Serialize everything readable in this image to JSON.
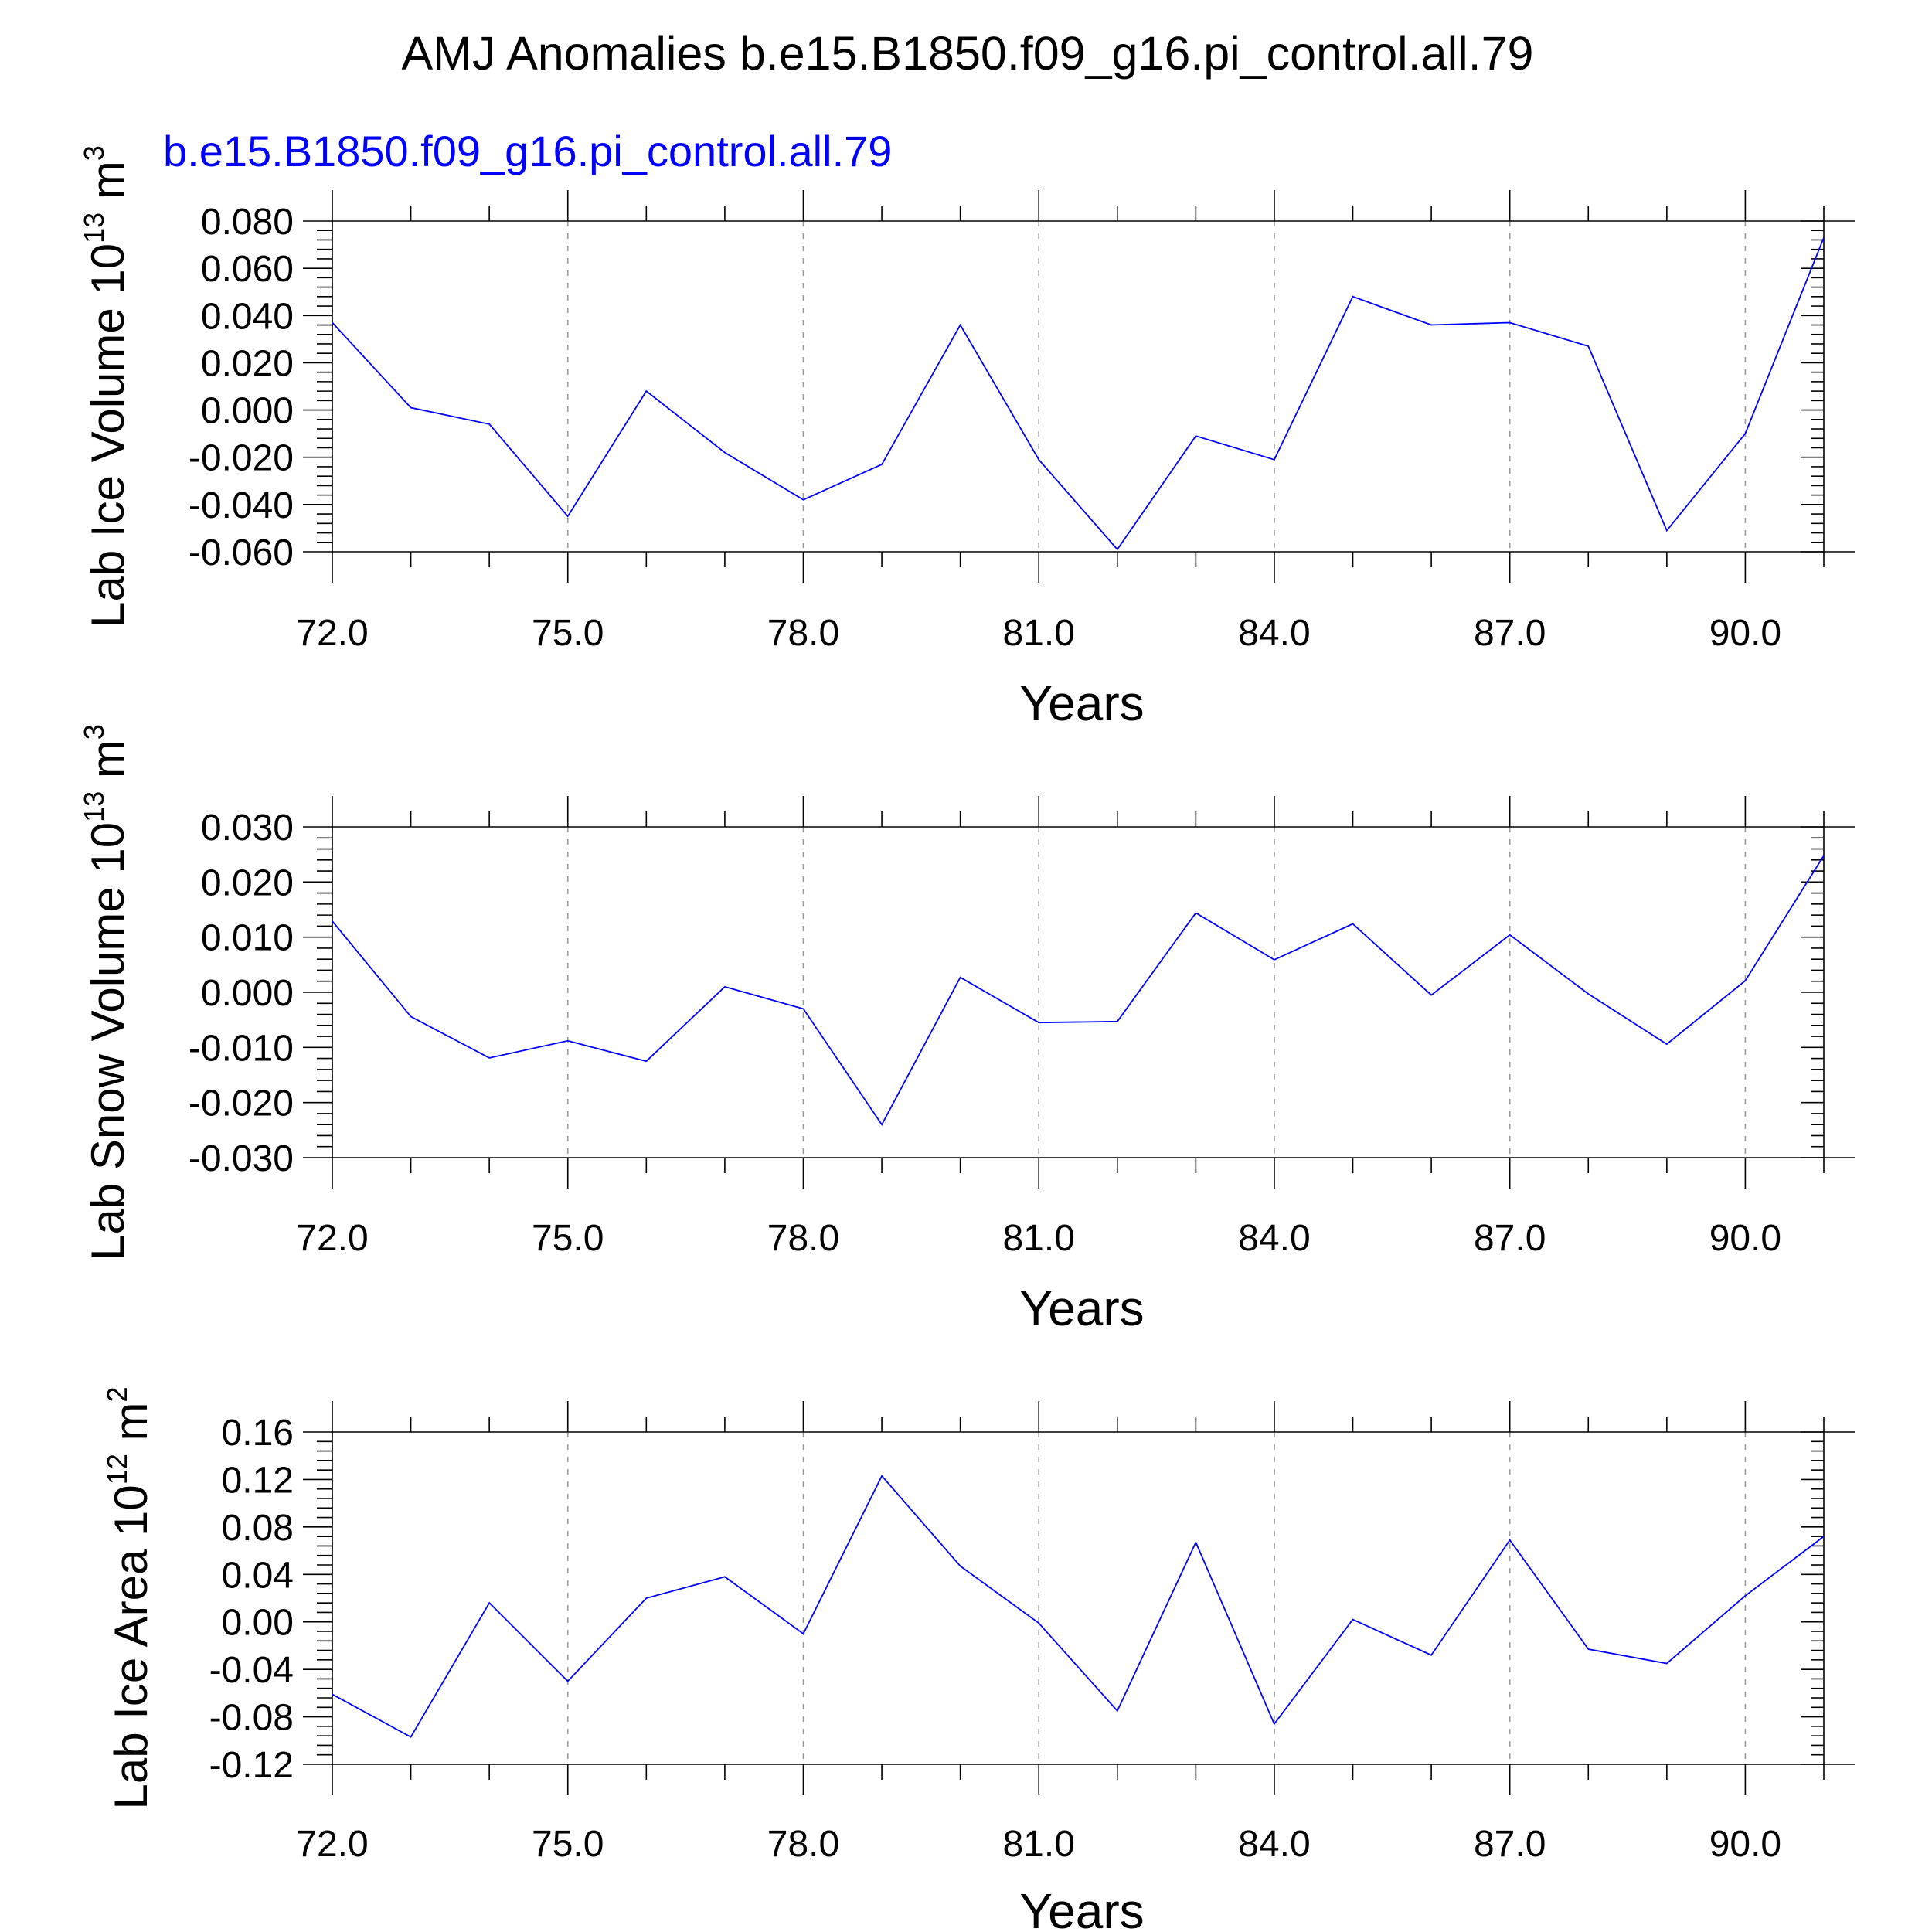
{
  "title": "AMJ Anomalies b.e15.B1850.f09_g16.pi_control.all.79",
  "subtitle": "b.e15.B1850.f09_g16.pi_control.all.79",
  "colors": {
    "series": "#0000ff",
    "axis": "#000000",
    "grid": "#999999"
  },
  "chart_data": [
    {
      "type": "line",
      "title": "",
      "xlabel": "Years",
      "ylabel": "Lab Ice Volume 10",
      "ylabel_exponent": "13",
      "ylabel_unit": "m",
      "ylabel_unit_exponent": "3",
      "xlim": [
        72,
        91
      ],
      "ylim": [
        -0.06,
        0.08
      ],
      "x_ticks": [
        "72.0",
        "75.0",
        "78.0",
        "81.0",
        "84.0",
        "87.0",
        "90.0"
      ],
      "y_ticks": [
        "-0.060",
        "-0.040",
        "-0.020",
        "0.000",
        "0.020",
        "0.040",
        "0.060",
        "0.080"
      ],
      "grid": "vertical dashed at major x ticks",
      "series": [
        {
          "x": [
            72,
            73,
            74,
            75,
            76,
            77,
            78,
            79,
            80,
            81,
            82,
            83,
            84,
            85,
            86,
            87,
            88,
            89,
            90,
            91
          ],
          "values": [
            0.037,
            0.001,
            -0.006,
            -0.045,
            0.008,
            -0.018,
            -0.038,
            -0.023,
            0.036,
            -0.021,
            -0.059,
            -0.011,
            -0.021,
            0.048,
            0.036,
            0.037,
            0.027,
            -0.051,
            -0.01,
            0.073
          ]
        }
      ]
    },
    {
      "type": "line",
      "title": "",
      "xlabel": "Years",
      "ylabel": "Lab Snow Volume 10",
      "ylabel_exponent": "13",
      "ylabel_unit": "m",
      "ylabel_unit_exponent": "3",
      "xlim": [
        72,
        91
      ],
      "ylim": [
        -0.03,
        0.03
      ],
      "x_ticks": [
        "72.0",
        "75.0",
        "78.0",
        "81.0",
        "84.0",
        "87.0",
        "90.0"
      ],
      "y_ticks": [
        "-0.030",
        "-0.020",
        "-0.010",
        "0.000",
        "0.010",
        "0.020",
        "0.030"
      ],
      "grid": "vertical dashed at major x ticks",
      "series": [
        {
          "x": [
            72,
            73,
            74,
            75,
            76,
            77,
            78,
            79,
            80,
            81,
            82,
            83,
            84,
            85,
            86,
            87,
            88,
            89,
            90,
            91
          ],
          "values": [
            0.0129,
            -0.0044,
            -0.0119,
            -0.0088,
            -0.0125,
            0.001,
            -0.003,
            -0.024,
            0.0027,
            -0.0055,
            -0.0053,
            0.0144,
            0.0059,
            0.0124,
            -0.0005,
            0.0104,
            -0.0003,
            -0.0094,
            0.0021,
            0.0248
          ]
        }
      ]
    },
    {
      "type": "line",
      "title": "",
      "xlabel": "Years",
      "ylabel": "Lab Ice Area 10",
      "ylabel_exponent": "12",
      "ylabel_unit": "m",
      "ylabel_unit_exponent": "2",
      "xlim": [
        72,
        91
      ],
      "ylim": [
        -0.12,
        0.16
      ],
      "x_ticks": [
        "72.0",
        "75.0",
        "78.0",
        "81.0",
        "84.0",
        "87.0",
        "90.0"
      ],
      "y_ticks": [
        "-0.12",
        "-0.08",
        "-0.04",
        "0.00",
        "0.04",
        "0.08",
        "0.12",
        "0.16"
      ],
      "grid": "vertical dashed at major x ticks",
      "series": [
        {
          "x": [
            72,
            73,
            74,
            75,
            76,
            77,
            78,
            79,
            80,
            81,
            82,
            83,
            84,
            85,
            86,
            87,
            88,
            89,
            90,
            91
          ],
          "values": [
            -0.061,
            -0.097,
            0.016,
            -0.05,
            0.02,
            0.038,
            -0.01,
            0.123,
            0.047,
            -0.001,
            -0.075,
            0.067,
            -0.086,
            0.002,
            -0.028,
            0.069,
            -0.023,
            -0.035,
            0.022,
            0.072
          ]
        }
      ]
    }
  ]
}
